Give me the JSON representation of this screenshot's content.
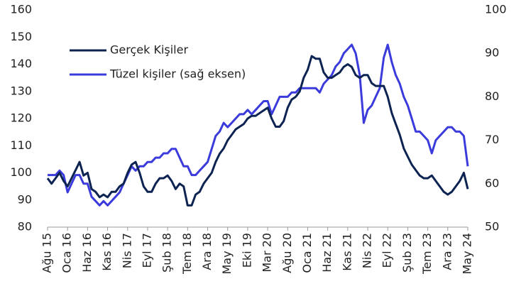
{
  "chart_data": {
    "type": "line",
    "categories": [
      "Ağu 15",
      null,
      null,
      null,
      null,
      "Oca 16",
      null,
      null,
      null,
      null,
      "Haz 16",
      null,
      null,
      null,
      null,
      "Kas 16",
      null,
      null,
      null,
      null,
      "Nis 17",
      null,
      null,
      null,
      null,
      "Eyl 17",
      null,
      null,
      null,
      null,
      "Şub 18",
      null,
      null,
      null,
      null,
      "Tem 18",
      null,
      null,
      null,
      null,
      "Ara 18",
      null,
      null,
      null,
      null,
      "May 19",
      null,
      null,
      null,
      null,
      "Eki 19",
      null,
      null,
      null,
      null,
      "Mar 20",
      null,
      null,
      null,
      null,
      "Ağu 20",
      null,
      null,
      null,
      null,
      "Oca 21",
      null,
      null,
      null,
      null,
      "Haz 21",
      null,
      null,
      null,
      null,
      "Kas 21",
      null,
      null,
      null,
      null,
      "Nis 22",
      null,
      null,
      null,
      null,
      "Eyl 22",
      null,
      null,
      null,
      null,
      "Şub 23",
      null,
      null,
      null,
      null,
      "Tem 23",
      null,
      null,
      null,
      null,
      "Ara 23",
      null,
      null,
      null,
      null,
      "May 24"
    ],
    "series": [
      {
        "name": "Gerçek Kişiler",
        "color": "#0d2352",
        "values": [
          98,
          96,
          98,
          100,
          97,
          95,
          98,
          101,
          104,
          99,
          100,
          94,
          93,
          91,
          92,
          91,
          93,
          93,
          95,
          96,
          100,
          103,
          104,
          100,
          95,
          93,
          93,
          96,
          98,
          98,
          99,
          97,
          94,
          96,
          95,
          88,
          88,
          92,
          93,
          96,
          98,
          100,
          104,
          107,
          109,
          112,
          114,
          116,
          117,
          118,
          120,
          121,
          121,
          122,
          123,
          124,
          120,
          117,
          117,
          119,
          124,
          127,
          128,
          130,
          135,
          138,
          143,
          142,
          142,
          137,
          135,
          135,
          136,
          137,
          139,
          140,
          139,
          136,
          135,
          136,
          136,
          133,
          132,
          132,
          132,
          128,
          122,
          118,
          114,
          109,
          106,
          103,
          101,
          99,
          98,
          98,
          99,
          97,
          95,
          93,
          92,
          93,
          95,
          97,
          100,
          94
        ]
      },
      {
        "name": "Tüzel kişiler (sağ eksen)",
        "color": "#3b3bdc",
        "axis": "y2",
        "values": [
          62,
          62,
          62,
          63,
          62,
          58,
          60,
          62,
          62,
          60,
          60,
          57,
          56,
          55,
          56,
          55,
          56,
          57,
          58,
          60,
          62,
          64,
          63,
          64,
          64,
          65,
          65,
          66,
          66,
          67,
          67,
          68,
          68,
          66,
          64,
          64,
          62,
          62,
          63,
          64,
          65,
          68,
          71,
          72,
          74,
          73,
          74,
          75,
          76,
          76,
          77,
          76,
          77,
          78,
          79,
          79,
          76,
          78,
          80,
          80,
          80,
          81,
          81,
          82,
          82,
          82,
          82,
          82,
          81,
          83,
          84,
          85,
          87,
          88,
          90,
          91,
          92,
          90,
          85,
          74,
          77,
          78,
          80,
          82,
          89,
          92,
          88,
          85,
          83,
          80,
          78,
          75,
          72,
          72,
          71,
          70,
          67,
          70,
          71,
          72,
          73,
          73,
          72,
          72,
          71,
          64
        ]
      }
    ],
    "ylim": [
      80,
      160
    ],
    "yticks": [
      80,
      90,
      100,
      110,
      120,
      130,
      140,
      150,
      160
    ],
    "y2lim": [
      50,
      100
    ],
    "y2ticks": [
      50,
      60,
      70,
      80,
      90,
      100
    ],
    "legend": "upper left",
    "grid": false
  }
}
